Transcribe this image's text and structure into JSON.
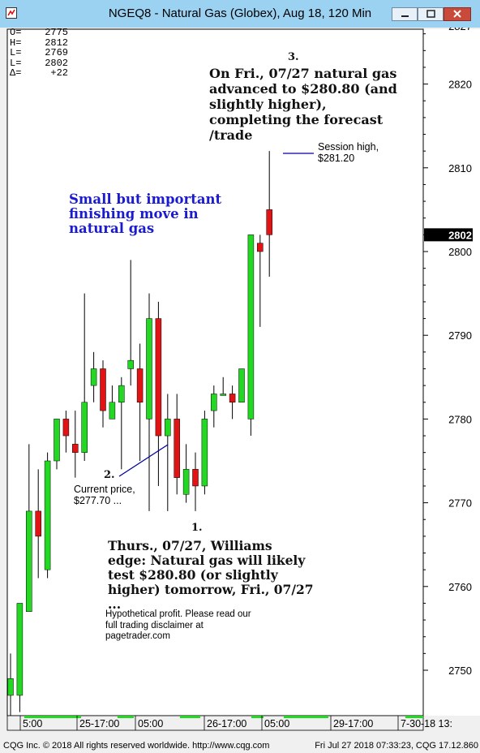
{
  "window": {
    "title": "NGEQ8 - Natural Gas (Globex), Aug 18, 120 Min"
  },
  "stats": [
    {
      "label": "O=",
      "value": "2775"
    },
    {
      "label": "H=",
      "value": "2812"
    },
    {
      "label": "L=",
      "value": "2769"
    },
    {
      "label": "L=",
      "value": "2802"
    },
    {
      "label": "Δ=",
      "value": "+22"
    }
  ],
  "annotations": {
    "a3_num": "3.",
    "a3_text": "On Fri., 07/27 natural gas advanced to $280.80 (and slightly higher), completing the forecast /trade",
    "session_high": "Session high, $281.20",
    "blue_note": "Small but important finishing move in natural gas",
    "a2_num": "2.",
    "a2_text": "Current price, $277.70 ...",
    "a1_num": "1.",
    "a1_text": "Thurs., 07/27, Williams edge: Natural gas will likely test $280.80 (or slightly higher) tomorrow, Fri., 07/27 ...",
    "disclaimer": "Hypothetical profit. Please read our full trading disclaimer at pagetrader.com"
  },
  "status": {
    "left": "CQG Inc. © 2018 All rights reserved worldwide. http://www.cqg.com",
    "right": "Fri Jul 27 2018 07:33:23, CQG 17.12.860"
  },
  "chart_data": {
    "type": "candlestick",
    "ylim": [
      2745,
      2827
    ],
    "yticks": [
      2750,
      2760,
      2770,
      2780,
      2790,
      2800,
      2810,
      2820
    ],
    "top_partial_label": "2827",
    "last_price_label": "2802",
    "xlabels": [
      "5:00",
      "25-17:00",
      "05:00",
      "26-17:00",
      "05:00",
      "29-17:00",
      "7-30-18 13:"
    ],
    "colors": {
      "up": "#22d822",
      "down": "#e01414",
      "wick": "#000000",
      "bg": "#ffffff",
      "annot_line": "#0000a0"
    },
    "candles": [
      {
        "o": 2747,
        "h": 2752,
        "l": 2744,
        "c": 2749
      },
      {
        "o": 2747,
        "h": 2758,
        "l": 2745,
        "c": 2758
      },
      {
        "o": 2757,
        "h": 2777,
        "l": 2757,
        "c": 2769
      },
      {
        "o": 2769,
        "h": 2774,
        "l": 2761,
        "c": 2766
      },
      {
        "o": 2762,
        "h": 2776,
        "l": 2761,
        "c": 2775
      },
      {
        "o": 2775,
        "h": 2780,
        "l": 2774,
        "c": 2780
      },
      {
        "o": 2780,
        "h": 2781,
        "l": 2776,
        "c": 2778
      },
      {
        "o": 2777,
        "h": 2781,
        "l": 2773,
        "c": 2776
      },
      {
        "o": 2776,
        "h": 2795,
        "l": 2775,
        "c": 2782
      },
      {
        "o": 2784,
        "h": 2788,
        "l": 2782,
        "c": 2786
      },
      {
        "o": 2786,
        "h": 2787,
        "l": 2779,
        "c": 2781
      },
      {
        "o": 2780,
        "h": 2784,
        "l": 2780,
        "c": 2782
      },
      {
        "o": 2782,
        "h": 2785,
        "l": 2774,
        "c": 2784
      },
      {
        "o": 2786,
        "h": 2799,
        "l": 2784,
        "c": 2787
      },
      {
        "o": 2786,
        "h": 2789,
        "l": 2775,
        "c": 2782
      },
      {
        "o": 2780,
        "h": 2795,
        "l": 2769,
        "c": 2792
      },
      {
        "o": 2792,
        "h": 2794,
        "l": 2772,
        "c": 2778
      },
      {
        "o": 2778,
        "h": 2783,
        "l": 2769,
        "c": 2780
      },
      {
        "o": 2780,
        "h": 2783,
        "l": 2771,
        "c": 2773
      },
      {
        "o": 2771,
        "h": 2777,
        "l": 2770,
        "c": 2774
      },
      {
        "o": 2774,
        "h": 2776,
        "l": 2769,
        "c": 2772
      },
      {
        "o": 2772,
        "h": 2781,
        "l": 2771,
        "c": 2780
      },
      {
        "o": 2781,
        "h": 2784,
        "l": 2779,
        "c": 2783
      },
      {
        "o": 2783,
        "h": 2785,
        "l": 2783,
        "c": 2783
      },
      {
        "o": 2783,
        "h": 2784,
        "l": 2780,
        "c": 2782
      },
      {
        "o": 2782,
        "h": 2786,
        "l": 2782,
        "c": 2786
      },
      {
        "o": 2780,
        "h": 2802,
        "l": 2778,
        "c": 2802
      },
      {
        "o": 2801,
        "h": 2802,
        "l": 2791,
        "c": 2800
      },
      {
        "o": 2805,
        "h": 2812,
        "l": 2797,
        "c": 2802
      }
    ]
  }
}
